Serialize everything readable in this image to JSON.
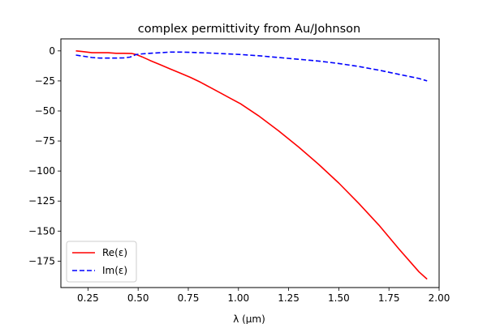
{
  "chart_data": {
    "type": "line",
    "title": "complex permittivity from Au/Johnson",
    "xlabel": "λ (μm)",
    "ylabel": "",
    "xlim": [
      0.115,
      2.0
    ],
    "ylim": [
      -197,
      10
    ],
    "xticks": [
      0.25,
      0.5,
      0.75,
      1.0,
      1.25,
      1.5,
      1.75,
      2.0
    ],
    "xtick_labels": [
      "0.25",
      "0.50",
      "0.75",
      "1.00",
      "1.25",
      "1.50",
      "1.75",
      "2.00"
    ],
    "yticks": [
      0,
      -25,
      -50,
      -75,
      -100,
      -125,
      -150,
      -175
    ],
    "ytick_labels": [
      "0",
      "−25",
      "−50",
      "−75",
      "−100",
      "−125",
      "−150",
      "−175"
    ],
    "grid": false,
    "legend_position": "lower-left",
    "series": [
      {
        "name": "Re(ε)",
        "color": "#ff0000",
        "style": "solid",
        "x": [
          0.19,
          0.22,
          0.27,
          0.31,
          0.35,
          0.39,
          0.43,
          0.47,
          0.49,
          0.52,
          0.56,
          0.61,
          0.66,
          0.71,
          0.76,
          0.81,
          0.86,
          0.91,
          0.96,
          1.01,
          1.1,
          1.2,
          1.3,
          1.4,
          1.5,
          1.6,
          1.7,
          1.8,
          1.9,
          1.94
        ],
        "y": [
          0,
          -0.5,
          -1.5,
          -1.5,
          -1.5,
          -2,
          -2,
          -2.2,
          -3,
          -5,
          -8,
          -11.5,
          -15,
          -18.5,
          -22,
          -26,
          -30.5,
          -35,
          -39.5,
          -44,
          -54,
          -66.5,
          -80,
          -94.5,
          -110,
          -127,
          -145,
          -165,
          -184,
          -190
        ]
      },
      {
        "name": "Im(ε)",
        "color": "#0000ff",
        "style": "dashed",
        "x": [
          0.19,
          0.23,
          0.27,
          0.31,
          0.35,
          0.39,
          0.43,
          0.46,
          0.49,
          0.52,
          0.56,
          0.61,
          0.66,
          0.71,
          0.76,
          0.81,
          0.86,
          0.91,
          0.96,
          1.01,
          1.1,
          1.2,
          1.3,
          1.4,
          1.5,
          1.6,
          1.7,
          1.8,
          1.9,
          1.94
        ],
        "y": [
          -3.5,
          -4.5,
          -5.5,
          -6,
          -6,
          -6,
          -5.8,
          -5.2,
          -3,
          -2.5,
          -2,
          -1.5,
          -1,
          -1,
          -1.2,
          -1.5,
          -1.8,
          -2.2,
          -2.6,
          -3,
          -4,
          -5.5,
          -7,
          -8.5,
          -10.5,
          -13,
          -16,
          -19.5,
          -23,
          -25
        ]
      }
    ]
  }
}
